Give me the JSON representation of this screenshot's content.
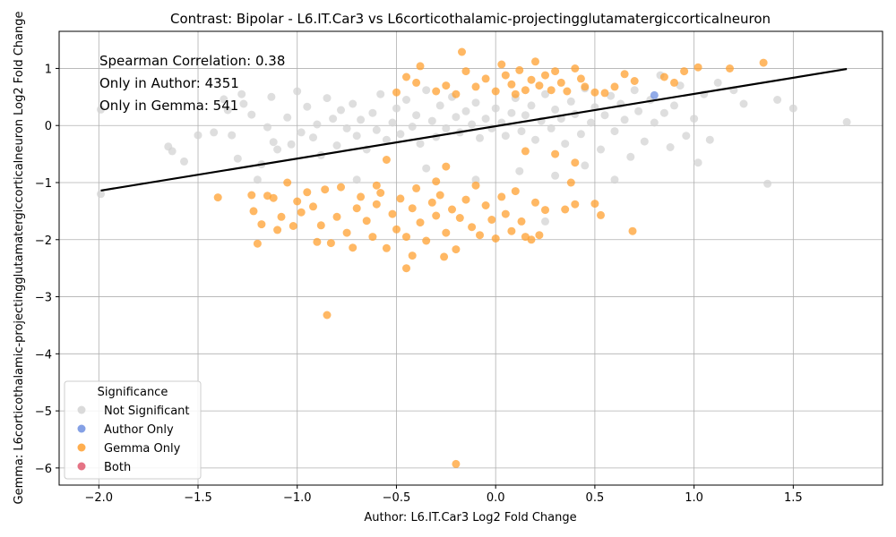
{
  "chart_data": {
    "type": "scatter",
    "title": "Contrast: Bipolar - L6.IT.Car3 vs L6corticothalamic-projectingglutamatergiccorticalneuron",
    "xlabel": "Author: L6.IT.Car3 Log2 Fold Change",
    "ylabel": "Gemma: L6corticothalamic-projectingglutamatergiccorticalneuron Log2 Fold Change",
    "xlim": [
      -2.2,
      1.95
    ],
    "ylim": [
      -6.3,
      1.65
    ],
    "x_ticks": [
      -2.0,
      -1.5,
      -1.0,
      -0.5,
      0.0,
      0.5,
      1.0,
      1.5
    ],
    "x_tick_labels": [
      "−2.0",
      "−1.5",
      "−1.0",
      "−0.5",
      "0.0",
      "0.5",
      "1.0",
      "1.5"
    ],
    "y_ticks": [
      1,
      0,
      -1,
      -2,
      -3,
      -4,
      -5,
      -6
    ],
    "y_tick_labels": [
      "1",
      "0",
      "−1",
      "−2",
      "−3",
      "−4",
      "−5",
      "−6"
    ],
    "grid": true,
    "annotations": [
      "Spearman Correlation: 0.38",
      "Only in Author: 4351",
      "Only in Gemma: 541"
    ],
    "regression_line": {
      "x": [
        -1.99,
        1.77
      ],
      "y": [
        -1.14,
        0.99
      ]
    },
    "legend": {
      "title": "Significance",
      "placement": "lower-left",
      "entries": [
        {
          "label": "Not Significant",
          "color": "#d3d3d3"
        },
        {
          "label": "Author Only",
          "color": "#6e8fe0"
        },
        {
          "label": "Gemma Only",
          "color": "#ffa030"
        },
        {
          "label": "Both",
          "color": "#e05a70"
        }
      ]
    },
    "series": [
      {
        "name": "Not Significant",
        "color": "#d3d3d3",
        "points": [
          [
            -1.99,
            0.28
          ],
          [
            -1.99,
            -1.2
          ],
          [
            -1.65,
            -0.37
          ],
          [
            -1.63,
            -0.45
          ],
          [
            -1.57,
            -0.63
          ],
          [
            -1.5,
            -0.17
          ],
          [
            -1.42,
            -0.12
          ],
          [
            -1.37,
            0.46
          ],
          [
            -1.35,
            0.27
          ],
          [
            -1.33,
            -0.17
          ],
          [
            -1.3,
            -0.58
          ],
          [
            -1.28,
            0.55
          ],
          [
            -1.27,
            0.38
          ],
          [
            -1.23,
            0.19
          ],
          [
            -1.2,
            -0.95
          ],
          [
            -1.18,
            -0.68
          ],
          [
            -1.15,
            -0.03
          ],
          [
            -1.13,
            0.5
          ],
          [
            -1.12,
            -0.29
          ],
          [
            -1.1,
            -0.42
          ],
          [
            -1.05,
            0.14
          ],
          [
            -1.03,
            -0.33
          ],
          [
            -1.0,
            0.6
          ],
          [
            -0.98,
            -0.12
          ],
          [
            -0.95,
            0.33
          ],
          [
            -0.92,
            -0.21
          ],
          [
            -0.9,
            0.02
          ],
          [
            -0.88,
            -0.52
          ],
          [
            -0.85,
            0.48
          ],
          [
            -0.82,
            0.12
          ],
          [
            -0.8,
            -0.35
          ],
          [
            -0.78,
            0.27
          ],
          [
            -0.75,
            -0.05
          ],
          [
            -0.72,
            0.38
          ],
          [
            -0.7,
            -0.18
          ],
          [
            -0.68,
            0.1
          ],
          [
            -0.65,
            -0.42
          ],
          [
            -0.62,
            0.22
          ],
          [
            -0.6,
            -0.08
          ],
          [
            -0.58,
            0.55
          ],
          [
            -0.55,
            -0.25
          ],
          [
            -0.52,
            0.05
          ],
          [
            -0.5,
            0.3
          ],
          [
            -0.48,
            -0.15
          ],
          [
            -0.45,
            0.45
          ],
          [
            -0.42,
            -0.02
          ],
          [
            -0.4,
            0.18
          ],
          [
            -0.38,
            -0.32
          ],
          [
            -0.35,
            0.62
          ],
          [
            -0.32,
            0.08
          ],
          [
            -0.3,
            -0.2
          ],
          [
            -0.28,
            0.35
          ],
          [
            -0.25,
            -0.05
          ],
          [
            -0.22,
            0.5
          ],
          [
            -0.2,
            0.15
          ],
          [
            -0.18,
            -0.12
          ],
          [
            -0.15,
            0.25
          ],
          [
            -0.12,
            0.02
          ],
          [
            -0.1,
            0.4
          ],
          [
            -0.08,
            -0.22
          ],
          [
            -0.05,
            0.12
          ],
          [
            -0.02,
            -0.05
          ],
          [
            0.0,
            0.3
          ],
          [
            0.03,
            0.05
          ],
          [
            0.05,
            -0.18
          ],
          [
            0.08,
            0.22
          ],
          [
            0.1,
            0.48
          ],
          [
            0.13,
            -0.1
          ],
          [
            0.15,
            0.18
          ],
          [
            0.18,
            0.35
          ],
          [
            0.2,
            -0.25
          ],
          [
            0.23,
            0.08
          ],
          [
            0.25,
            0.55
          ],
          [
            0.28,
            -0.05
          ],
          [
            0.3,
            0.28
          ],
          [
            0.33,
            0.12
          ],
          [
            0.35,
            -0.32
          ],
          [
            0.38,
            0.42
          ],
          [
            0.4,
            0.2
          ],
          [
            0.43,
            -0.15
          ],
          [
            0.45,
            0.65
          ],
          [
            0.48,
            0.05
          ],
          [
            0.5,
            0.32
          ],
          [
            0.53,
            -0.42
          ],
          [
            0.55,
            0.18
          ],
          [
            0.58,
            0.52
          ],
          [
            0.6,
            -0.1
          ],
          [
            0.63,
            0.38
          ],
          [
            0.65,
            0.1
          ],
          [
            0.68,
            -0.55
          ],
          [
            0.7,
            0.62
          ],
          [
            0.72,
            0.25
          ],
          [
            0.75,
            -0.28
          ],
          [
            0.78,
            0.45
          ],
          [
            0.8,
            0.05
          ],
          [
            0.83,
            0.88
          ],
          [
            0.85,
            0.22
          ],
          [
            0.88,
            -0.38
          ],
          [
            0.9,
            0.35
          ],
          [
            0.93,
            0.7
          ],
          [
            0.96,
            -0.18
          ],
          [
            1.0,
            0.12
          ],
          [
            1.02,
            -0.65
          ],
          [
            1.05,
            0.55
          ],
          [
            1.08,
            -0.25
          ],
          [
            1.12,
            0.75
          ],
          [
            1.2,
            0.62
          ],
          [
            1.25,
            0.38
          ],
          [
            1.37,
            -1.02
          ],
          [
            1.42,
            0.45
          ],
          [
            1.5,
            0.3
          ],
          [
            1.77,
            0.06
          ],
          [
            0.25,
            -1.68
          ],
          [
            0.12,
            -0.8
          ],
          [
            -0.35,
            -0.75
          ],
          [
            0.45,
            -0.7
          ],
          [
            0.6,
            -0.95
          ],
          [
            -0.7,
            -0.95
          ],
          [
            0.3,
            -0.88
          ],
          [
            -0.1,
            -0.95
          ]
        ]
      },
      {
        "name": "Author Only",
        "color": "#6e8fe0",
        "points": [
          [
            0.8,
            0.53
          ]
        ]
      },
      {
        "name": "Gemma Only",
        "color": "#ffa030",
        "points": [
          [
            -0.85,
            -3.32
          ],
          [
            -0.2,
            -5.93
          ],
          [
            -0.45,
            -2.5
          ],
          [
            -0.26,
            -2.3
          ],
          [
            -0.42,
            -2.28
          ],
          [
            -1.4,
            -1.26
          ],
          [
            -1.23,
            -1.22
          ],
          [
            -1.22,
            -1.5
          ],
          [
            -1.2,
            -2.07
          ],
          [
            -1.18,
            -1.73
          ],
          [
            -1.15,
            -1.23
          ],
          [
            -1.12,
            -1.27
          ],
          [
            -1.1,
            -1.83
          ],
          [
            -1.08,
            -1.6
          ],
          [
            -1.05,
            -1.0
          ],
          [
            -1.02,
            -1.76
          ],
          [
            -1.0,
            -1.33
          ],
          [
            -0.98,
            -1.52
          ],
          [
            -0.95,
            -1.17
          ],
          [
            -0.92,
            -1.42
          ],
          [
            -0.9,
            -2.04
          ],
          [
            -0.88,
            -1.75
          ],
          [
            -0.86,
            -1.12
          ],
          [
            -0.83,
            -2.06
          ],
          [
            -0.8,
            -1.6
          ],
          [
            -0.78,
            -1.08
          ],
          [
            -0.75,
            -1.88
          ],
          [
            -0.72,
            -2.14
          ],
          [
            -0.7,
            -1.45
          ],
          [
            -0.68,
            -1.25
          ],
          [
            -0.65,
            -1.67
          ],
          [
            -0.62,
            -1.95
          ],
          [
            -0.6,
            -1.38
          ],
          [
            -0.58,
            -1.18
          ],
          [
            -0.55,
            -2.15
          ],
          [
            -0.52,
            -1.55
          ],
          [
            -0.5,
            -1.82
          ],
          [
            -0.48,
            -1.28
          ],
          [
            -0.45,
            -1.95
          ],
          [
            -0.42,
            -1.45
          ],
          [
            -0.4,
            -1.1
          ],
          [
            -0.38,
            -1.7
          ],
          [
            -0.35,
            -2.02
          ],
          [
            -0.32,
            -1.35
          ],
          [
            -0.3,
            -1.58
          ],
          [
            -0.28,
            -1.22
          ],
          [
            -0.25,
            -1.88
          ],
          [
            -0.22,
            -1.47
          ],
          [
            -0.2,
            -2.17
          ],
          [
            -0.18,
            -1.62
          ],
          [
            -0.15,
            -1.3
          ],
          [
            -0.12,
            -1.78
          ],
          [
            -0.1,
            -1.05
          ],
          [
            -0.08,
            -1.92
          ],
          [
            -0.05,
            -1.4
          ],
          [
            -0.02,
            -1.65
          ],
          [
            0.0,
            -1.98
          ],
          [
            0.03,
            -1.25
          ],
          [
            0.05,
            -1.55
          ],
          [
            0.08,
            -1.85
          ],
          [
            0.1,
            -1.15
          ],
          [
            0.13,
            -1.68
          ],
          [
            0.15,
            -1.95
          ],
          [
            0.18,
            -2.0
          ],
          [
            0.2,
            -1.35
          ],
          [
            0.22,
            -1.92
          ],
          [
            0.25,
            -1.48
          ],
          [
            0.35,
            -1.47
          ],
          [
            0.38,
            -1.0
          ],
          [
            0.4,
            -1.38
          ],
          [
            0.5,
            -1.37
          ],
          [
            0.53,
            -1.57
          ],
          [
            0.69,
            -1.85
          ],
          [
            -0.6,
            -1.05
          ],
          [
            -0.3,
            -0.98
          ],
          [
            -0.5,
            0.58
          ],
          [
            -0.45,
            0.85
          ],
          [
            -0.4,
            0.75
          ],
          [
            -0.38,
            1.04
          ],
          [
            -0.3,
            0.6
          ],
          [
            -0.25,
            0.7
          ],
          [
            -0.2,
            0.55
          ],
          [
            -0.15,
            0.95
          ],
          [
            -0.1,
            0.68
          ],
          [
            -0.05,
            0.82
          ],
          [
            0.0,
            0.6
          ],
          [
            0.03,
            1.07
          ],
          [
            0.05,
            0.88
          ],
          [
            0.08,
            0.72
          ],
          [
            0.1,
            0.55
          ],
          [
            0.12,
            0.97
          ],
          [
            0.15,
            0.62
          ],
          [
            0.18,
            0.8
          ],
          [
            0.2,
            1.12
          ],
          [
            0.22,
            0.7
          ],
          [
            0.25,
            0.88
          ],
          [
            0.28,
            0.62
          ],
          [
            0.3,
            0.95
          ],
          [
            0.33,
            0.75
          ],
          [
            0.36,
            0.6
          ],
          [
            0.4,
            1.0
          ],
          [
            0.43,
            0.82
          ],
          [
            0.45,
            0.68
          ],
          [
            0.5,
            0.58
          ],
          [
            0.55,
            0.57
          ],
          [
            0.6,
            0.68
          ],
          [
            0.65,
            0.9
          ],
          [
            0.7,
            0.78
          ],
          [
            0.85,
            0.85
          ],
          [
            0.9,
            0.75
          ],
          [
            0.95,
            0.95
          ],
          [
            1.02,
            1.02
          ],
          [
            1.18,
            1.0
          ],
          [
            1.35,
            1.1
          ],
          [
            -0.17,
            1.29
          ],
          [
            0.4,
            -0.65
          ],
          [
            -0.55,
            -0.6
          ],
          [
            0.15,
            -0.45
          ],
          [
            -0.25,
            -0.72
          ],
          [
            0.3,
            -0.5
          ]
        ]
      },
      {
        "name": "Both",
        "color": "#e05a70",
        "points": []
      }
    ]
  }
}
